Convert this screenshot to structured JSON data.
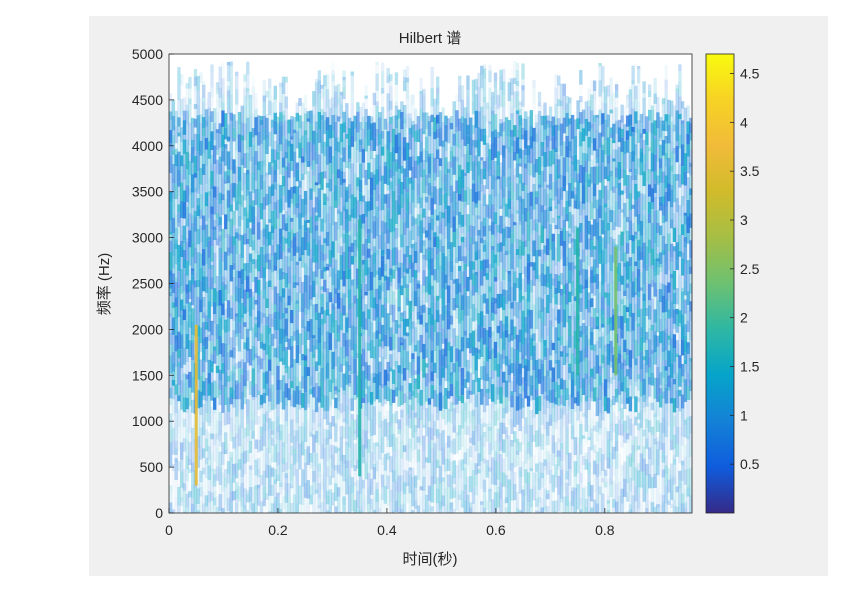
{
  "chart_data": {
    "type": "heatmap",
    "title": "Hilbert 谱",
    "xlabel": "时间(秒)",
    "ylabel": "频率 (Hz)",
    "xlim": [
      0,
      0.96
    ],
    "ylim": [
      0,
      5000
    ],
    "xticks": [
      {
        "value": 0,
        "label": "0"
      },
      {
        "value": 0.2,
        "label": "0.2"
      },
      {
        "value": 0.4,
        "label": "0.4"
      },
      {
        "value": 0.6,
        "label": "0.6"
      },
      {
        "value": 0.8,
        "label": "0.8"
      }
    ],
    "yticks": [
      {
        "value": 0,
        "label": "0"
      },
      {
        "value": 500,
        "label": "500"
      },
      {
        "value": 1000,
        "label": "1000"
      },
      {
        "value": 1500,
        "label": "1500"
      },
      {
        "value": 2000,
        "label": "2000"
      },
      {
        "value": 2500,
        "label": "2500"
      },
      {
        "value": 3000,
        "label": "3000"
      },
      {
        "value": 3500,
        "label": "3500"
      },
      {
        "value": 4000,
        "label": "4000"
      },
      {
        "value": 4500,
        "label": "4500"
      },
      {
        "value": 5000,
        "label": "5000"
      }
    ],
    "colorbar": {
      "range": [
        0,
        4.7
      ],
      "colormap": "parula",
      "ticks": [
        {
          "value": 0.5,
          "label": "0.5"
        },
        {
          "value": 1,
          "label": "1"
        },
        {
          "value": 1.5,
          "label": "1.5"
        },
        {
          "value": 2,
          "label": "2"
        },
        {
          "value": 2.5,
          "label": "2.5"
        },
        {
          "value": 3,
          "label": "3"
        },
        {
          "value": 3.5,
          "label": "3.5"
        },
        {
          "value": 4,
          "label": "4"
        },
        {
          "value": 4.5,
          "label": "4.5"
        }
      ]
    },
    "highlights": [
      {
        "time": 0.05,
        "freq_range": [
          300,
          2050
        ],
        "amplitude": 3.6
      },
      {
        "time": 0.35,
        "freq_range": [
          400,
          3200
        ],
        "amplitude": 1.8
      },
      {
        "time": 0.75,
        "freq_range": [
          1500,
          3100
        ],
        "amplitude": 1.8
      },
      {
        "time": 0.82,
        "freq_range": [
          1500,
          2900
        ],
        "amplitude": 2.4
      }
    ],
    "grid": false,
    "background_color": "#f0f0f0"
  }
}
